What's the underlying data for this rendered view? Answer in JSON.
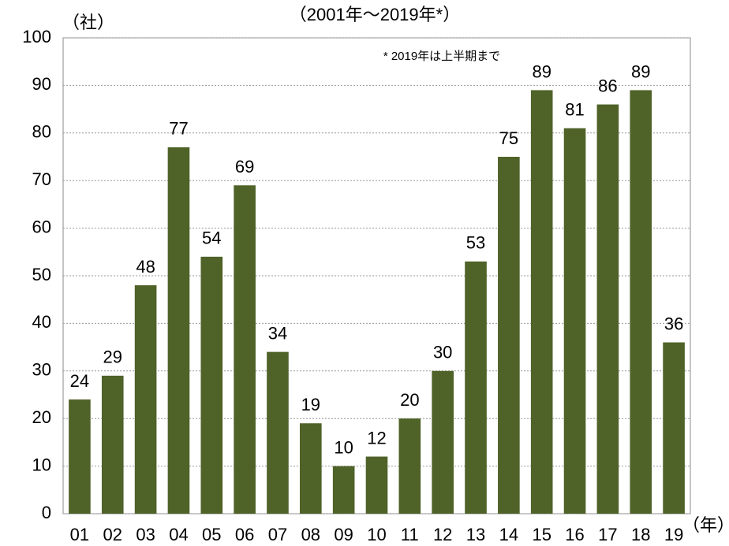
{
  "chart_data": {
    "type": "bar",
    "title": "（2001年～2019年*）",
    "y_label": "（社）",
    "x_label": "（年）",
    "annotation": "* 2019年は上半期まで",
    "categories": [
      "01",
      "02",
      "03",
      "04",
      "05",
      "06",
      "07",
      "08",
      "09",
      "10",
      "11",
      "12",
      "13",
      "14",
      "15",
      "16",
      "17",
      "18",
      "19"
    ],
    "values": [
      24,
      29,
      48,
      77,
      54,
      69,
      34,
      19,
      10,
      12,
      20,
      30,
      53,
      75,
      89,
      81,
      86,
      89,
      36
    ],
    "color": "#4f6228",
    "ylim": [
      0,
      100
    ],
    "yticks": [
      0,
      10,
      20,
      30,
      40,
      50,
      60,
      70,
      80,
      90,
      100
    ],
    "grid": true
  }
}
